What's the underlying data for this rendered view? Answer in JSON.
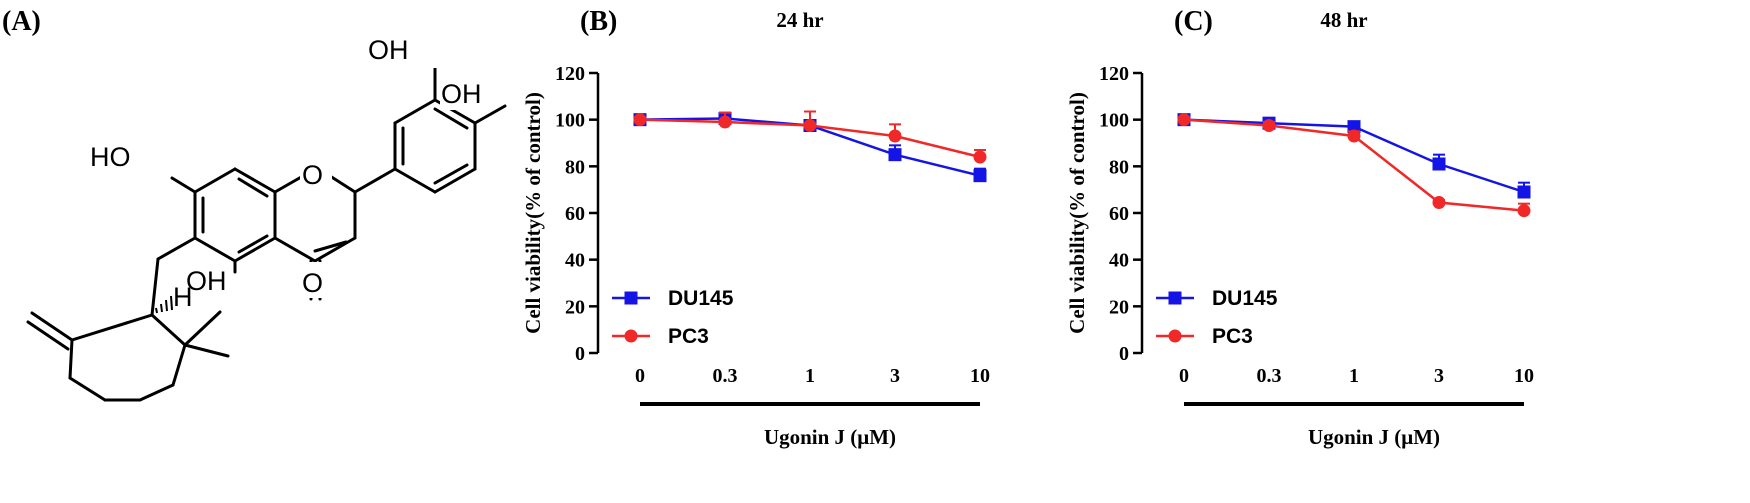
{
  "panels": {
    "a": {
      "label": "(A)"
    },
    "b": {
      "label": "(B)"
    },
    "c": {
      "label": "(C)"
    }
  },
  "structure": {
    "atoms": {
      "oh1": "OH",
      "oh2": "OH",
      "ho": "HO",
      "oh3": "OH",
      "o_ring": "O",
      "o_carbonyl": "O",
      "h": "H"
    }
  },
  "colors": {
    "du145": "#1414e6",
    "pc3": "#f02828",
    "axis": "#000000"
  },
  "chart_data": [
    {
      "type": "line",
      "title": "24 hr",
      "categories": [
        "0",
        "0.3",
        "1",
        "3",
        "10"
      ],
      "ylabel": "Cell viability(% of control)",
      "xlabel": "Ugonin J (μM)",
      "ylim": [
        0,
        120
      ],
      "yticks": [
        0,
        20,
        40,
        60,
        80,
        100,
        120
      ],
      "legend_position": "lower-left",
      "series": [
        {
          "name": "DU145",
          "marker": "square",
          "color": "#1414e6",
          "values": [
            100,
            100.5,
            97.5,
            85,
            76
          ],
          "errors": [
            1,
            2.5,
            2,
            4,
            3
          ]
        },
        {
          "name": "PC3",
          "marker": "circle",
          "color": "#f02828",
          "values": [
            100,
            99,
            97.5,
            93,
            84
          ],
          "errors": [
            1,
            4,
            6,
            5,
            3
          ]
        }
      ]
    },
    {
      "type": "line",
      "title": "48 hr",
      "categories": [
        "0",
        "0.3",
        "1",
        "3",
        "10"
      ],
      "ylabel": "Cell viability(% of control)",
      "xlabel": "Ugonin J (μM)",
      "ylim": [
        0,
        120
      ],
      "yticks": [
        0,
        20,
        40,
        60,
        80,
        100,
        120
      ],
      "legend_position": "lower-left",
      "series": [
        {
          "name": "DU145",
          "marker": "square",
          "color": "#1414e6",
          "values": [
            100,
            98.5,
            97,
            81,
            69
          ],
          "errors": [
            1,
            2,
            2,
            4,
            4
          ]
        },
        {
          "name": "PC3",
          "marker": "circle",
          "color": "#f02828",
          "values": [
            100,
            97.5,
            93,
            64.5,
            61
          ],
          "errors": [
            1,
            1.5,
            2,
            1,
            3
          ]
        }
      ]
    }
  ]
}
